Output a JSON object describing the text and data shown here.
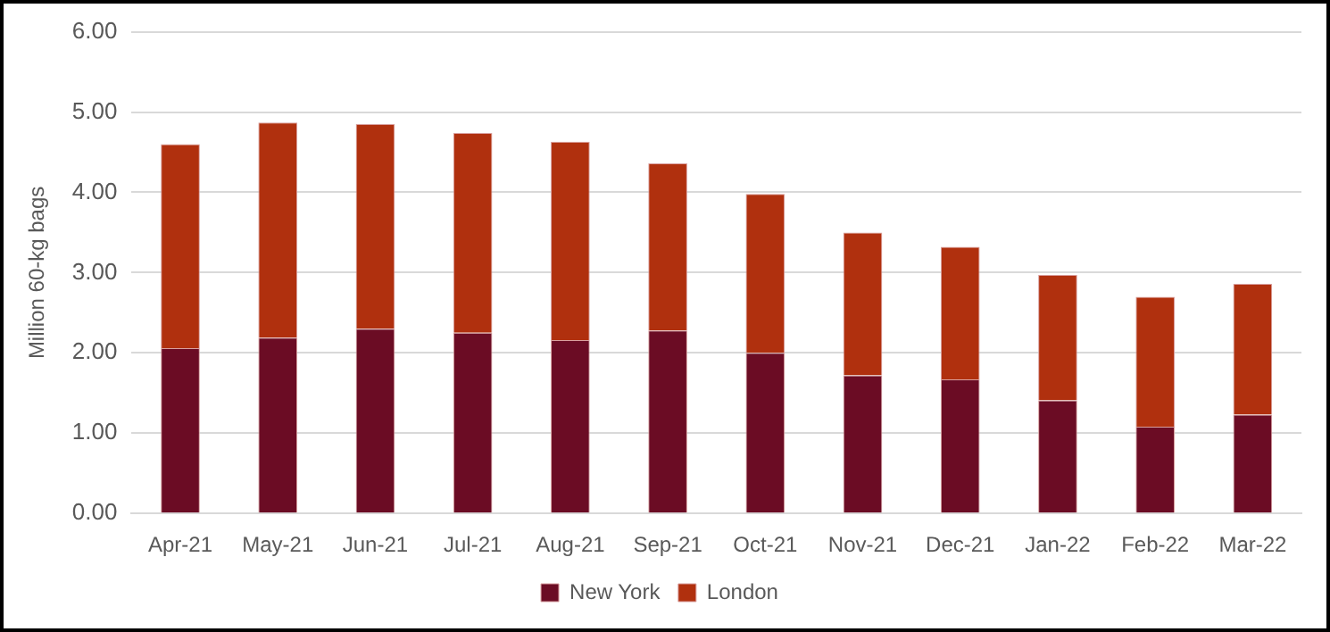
{
  "chart_data": {
    "type": "bar",
    "stacked": true,
    "ylabel": "Million 60-kg bags",
    "categories": [
      "Apr-21",
      "May-21",
      "Jun-21",
      "Jul-21",
      "Aug-21",
      "Sep-21",
      "Oct-21",
      "Nov-21",
      "Dec-21",
      "Jan-22",
      "Feb-22",
      "Mar-22"
    ],
    "series": [
      {
        "name": "New York",
        "color": "#6b0c24",
        "values": [
          2.06,
          2.19,
          2.3,
          2.25,
          2.16,
          2.28,
          2.0,
          1.72,
          1.67,
          1.41,
          1.08,
          1.23
        ]
      },
      {
        "name": "London",
        "color": "#b0300e",
        "values": [
          2.54,
          2.68,
          2.55,
          2.49,
          2.47,
          2.08,
          1.98,
          1.78,
          1.65,
          1.56,
          1.62,
          1.63
        ]
      }
    ],
    "ylim": [
      0,
      6
    ],
    "yticks": [
      {
        "value": 0,
        "label": "0.00"
      },
      {
        "value": 1,
        "label": "1.00"
      },
      {
        "value": 2,
        "label": "2.00"
      },
      {
        "value": 3,
        "label": "3.00"
      },
      {
        "value": 4,
        "label": "4.00"
      },
      {
        "value": 5,
        "label": "5.00"
      },
      {
        "value": 6,
        "label": "6.00"
      }
    ],
    "grid": "y",
    "legend": "bottom"
  }
}
